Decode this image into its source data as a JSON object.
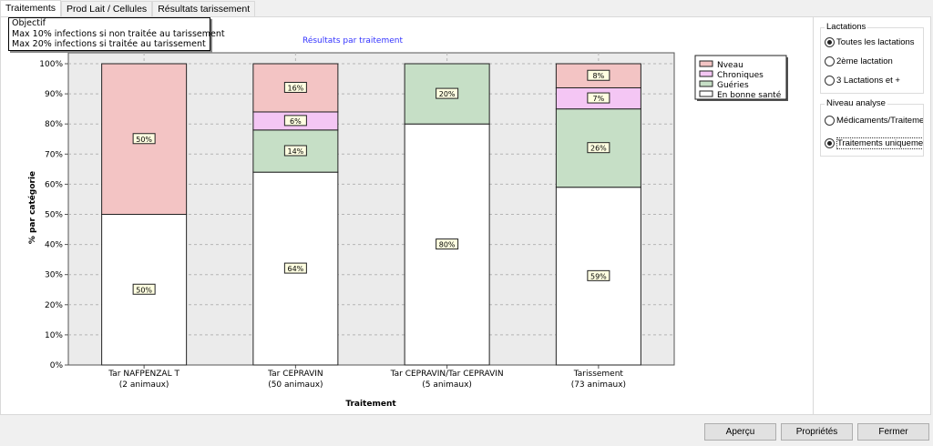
{
  "tabs": [
    {
      "label": "Traitements",
      "active": true
    },
    {
      "label": "Prod Lait / Cellules"
    },
    {
      "label": "Résultats tarissement"
    }
  ],
  "objective": {
    "title": "Objectif",
    "lines": [
      "Max 10% infections si non traitée au tarissement",
      "Max 20% infections si traitée au tarissement"
    ]
  },
  "lactations": {
    "title": "Lactations",
    "options": [
      {
        "label": "Toutes les lactations",
        "selected": true
      },
      {
        "label": "2ème lactation",
        "selected": false
      },
      {
        "label": "3 Lactations et +",
        "selected": false
      }
    ]
  },
  "niveau": {
    "title": "Niveau analyse",
    "options": [
      {
        "label": "Médicaments/Traitements",
        "selected": false
      },
      {
        "label": "Traitements uniquement",
        "selected": true
      }
    ]
  },
  "buttons": {
    "apercu": "Aperçu",
    "proprietes": "Propriétés",
    "fermer": "Fermer"
  },
  "chart_data": {
    "type": "bar",
    "stacked": true,
    "title": "Résultats par traitement",
    "xlabel": "Traitement",
    "ylabel": "% par catégorie",
    "ylim": [
      0,
      100
    ],
    "yticks": [
      "0%",
      "10%",
      "20%",
      "30%",
      "40%",
      "50%",
      "60%",
      "70%",
      "80%",
      "90%",
      "100%"
    ],
    "categories": [
      [
        "Tar NAFPENZAL T",
        "(2 animaux)"
      ],
      [
        "Tar CEPRAVIN",
        "(50 animaux)"
      ],
      [
        "Tar CEPRAVIN/Tar CEPRAVIN",
        "(5 animaux)"
      ],
      [
        "Tarissement",
        "(73 animaux)"
      ]
    ],
    "series": [
      {
        "name": "En bonne santé",
        "color": "#ffffff",
        "values": [
          50,
          64,
          80,
          59
        ]
      },
      {
        "name": "Guéries",
        "color": "#c6dfc6",
        "values": [
          0,
          14,
          20,
          26
        ]
      },
      {
        "name": "Chroniques",
        "color": "#f4c6f4",
        "values": [
          0,
          6,
          0,
          7
        ]
      },
      {
        "name": "Nveau",
        "color": "#f3c4c4",
        "values": [
          50,
          16,
          0,
          8
        ]
      }
    ],
    "legend_order": [
      3,
      2,
      1,
      0
    ],
    "grid": true,
    "legend": "right",
    "title_color": "#3333ff"
  }
}
